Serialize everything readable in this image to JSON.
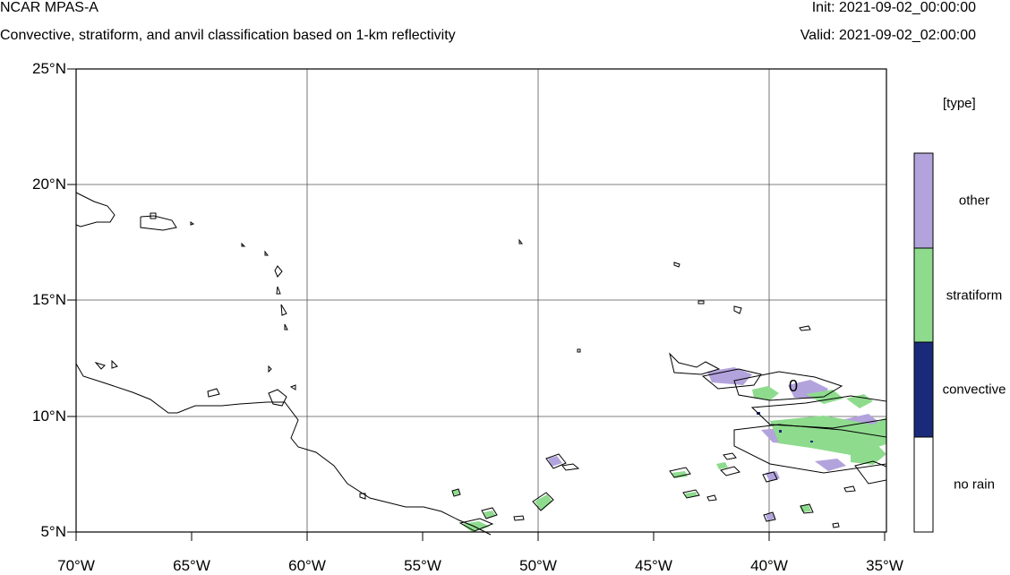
{
  "header": {
    "title": "NCAR MPAS-A",
    "subtitle": "Convective, stratiform, and anvil classification based on 1-km reflectivity",
    "init": "Init: 2021-09-02_00:00:00",
    "valid": "Valid: 2021-09-02_02:00:00"
  },
  "map": {
    "lat_labels": [
      "25°N",
      "20°N",
      "15°N",
      "10°N",
      "5°N"
    ],
    "lon_labels": [
      "70°W",
      "65°W",
      "60°W",
      "55°W",
      "50°W",
      "45°W",
      "40°W",
      "35°W"
    ],
    "lat_range": [
      5,
      25
    ],
    "lon_range": [
      -70,
      -35
    ],
    "contour_label": "0"
  },
  "legend": {
    "title": "[type]",
    "items": [
      {
        "label": "other",
        "color": "#b3a3dc"
      },
      {
        "label": "stratiform",
        "color": "#8edb8e"
      },
      {
        "label": "convective",
        "color": "#1a2a7a"
      },
      {
        "label": "no rain",
        "color": "#ffffff"
      }
    ]
  }
}
